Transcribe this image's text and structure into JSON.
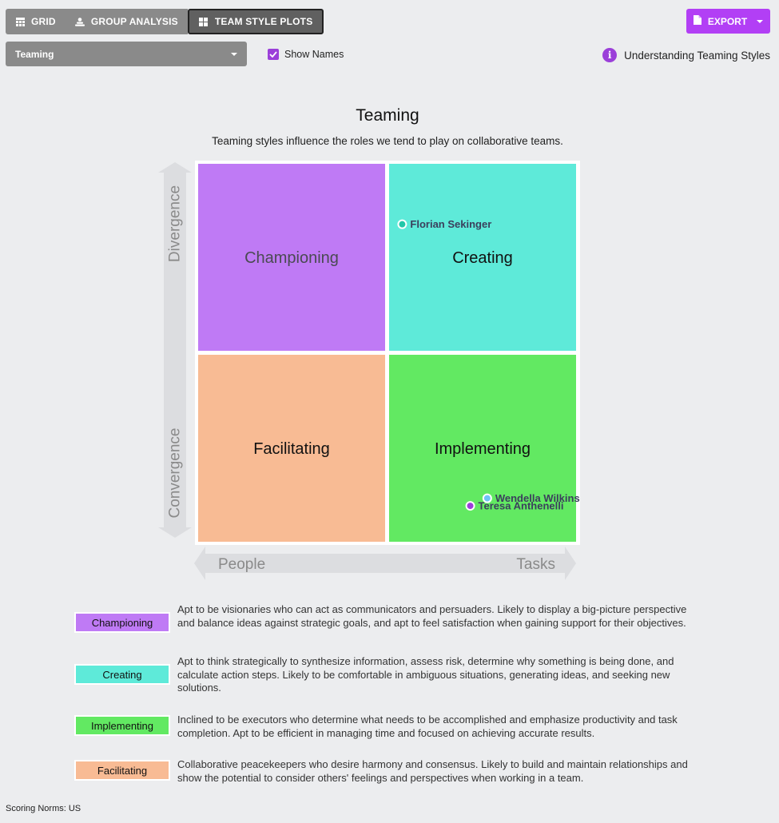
{
  "tabs": [
    {
      "label": "GRID",
      "icon": "grid-icon"
    },
    {
      "label": "GROUP ANALYSIS",
      "icon": "group-icon"
    },
    {
      "label": "TEAM STYLE PLOTS",
      "icon": "tiles-icon"
    }
  ],
  "export_label": "EXPORT",
  "select": {
    "value": "Teaming"
  },
  "show_names": {
    "label": "Show Names",
    "checked": true
  },
  "understanding_link": "Understanding Teaming Styles",
  "chart_data": {
    "type": "scatter",
    "title": "Teaming",
    "subtitle": "Teaming styles influence the roles we tend to play on collaborative teams.",
    "y_axis": {
      "top_label": "Divergence",
      "bottom_label": "Convergence"
    },
    "x_axis": {
      "left_label": "People",
      "right_label": "Tasks"
    },
    "quadrants": [
      {
        "name": "Championing",
        "position": "top-left",
        "color": "#bf7af5"
      },
      {
        "name": "Creating",
        "position": "top-right",
        "color": "#5eead9"
      },
      {
        "name": "Facilitating",
        "position": "bottom-left",
        "color": "#f8bb94"
      },
      {
        "name": "Implementing",
        "position": "bottom-right",
        "color": "#62e962"
      }
    ],
    "points": [
      {
        "name": "Florian Sekinger",
        "x": 0.08,
        "y": 0.68,
        "color": "#22c7a9"
      },
      {
        "name": "Teresa Anthenelli",
        "x": 0.44,
        "y": -0.81,
        "color": "#9b3fd9"
      },
      {
        "name": "Wendella Wilkins",
        "x": 0.53,
        "y": -0.77,
        "color": "#6fc3f7"
      }
    ]
  },
  "legend": [
    {
      "name": "Championing",
      "color": "#bf7af5",
      "description": "Apt to be visionaries who can act as communicators and persuaders. Likely to display a big-picture perspective and balance ideas against strategic goals, and apt to feel satisfaction when gaining support for their objectives."
    },
    {
      "name": "Creating",
      "color": "#5eead9",
      "description": "Apt to think strategically to synthesize information, assess risk, determine why something is being done, and calculate action steps. Likely to be comfortable in ambiguous situations, generating ideas, and seeking new solutions."
    },
    {
      "name": "Implementing",
      "color": "#62e962",
      "description": "Inclined to be executors who determine what needs to be accomplished and emphasize productivity and task completion. Apt to be efficient in managing time and focused on achieving accurate results."
    },
    {
      "name": "Facilitating",
      "color": "#f8bb94",
      "description": "Collaborative peacekeepers who desire harmony and consensus. Likely to build and maintain relationships and show the potential to consider others' feelings and perspectives when working in a team."
    }
  ],
  "scoring_norms": "Scoring Norms: US"
}
